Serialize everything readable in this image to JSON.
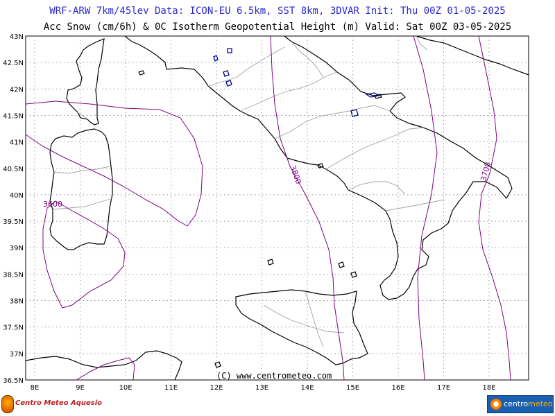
{
  "header": {
    "title_line1": "WRF-ARW 7km/45lev  Data: ICON-EU 6.5km, SST 8km, 3DVAR  Init: Thu 00Z 01-05-2025",
    "title_line2": "Acc Snow (cm/6h) & 0C Isotherm Geopotential Height (m)  Valid: Sat 00Z 03-05-2025"
  },
  "axes": {
    "lon_labels": [
      "8E",
      "9E",
      "10E",
      "11E",
      "12E",
      "13E",
      "14E",
      "15E",
      "16E",
      "17E",
      "18E"
    ],
    "lat_labels": [
      "43N",
      "42.5N",
      "42N",
      "41.5N",
      "41N",
      "40.5N",
      "40N",
      "39.5N",
      "39N",
      "38.5N",
      "38N",
      "37.5N",
      "37N",
      "36.5N"
    ]
  },
  "map": {
    "contour_labels": [
      "3600",
      "3800",
      "3700"
    ],
    "copyright": "(C) www.centrometeo.com",
    "colors": {
      "coastline": "#000000",
      "borders": "#a0a0a0",
      "isotherm": "#800080",
      "snow": "#00008b",
      "grid": "#808080"
    }
  },
  "footer": {
    "left_logo_text": "Centro Meteo Aquesio",
    "right_logo_text_a": "centro",
    "right_logo_text_b": "meteo"
  }
}
